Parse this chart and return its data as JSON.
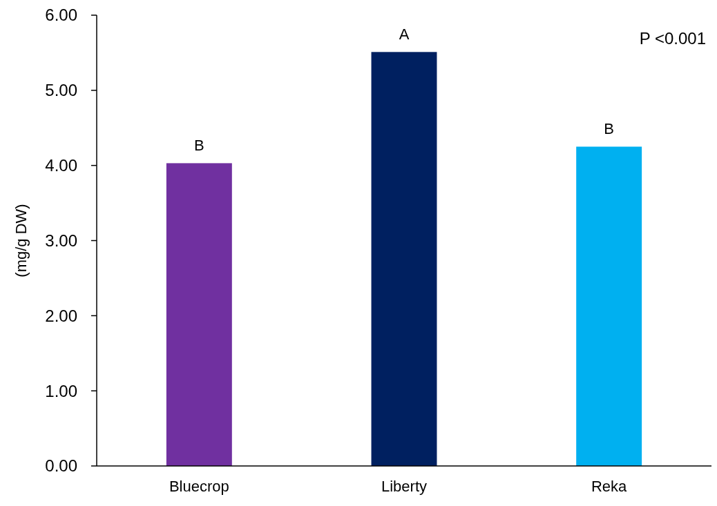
{
  "chart_data": {
    "type": "bar",
    "ylabel": "(mg/g DW)",
    "categories": [
      "Bluecrop",
      "Liberty",
      "Reka"
    ],
    "values": [
      4.03,
      5.51,
      4.25
    ],
    "colors": [
      "#7030a0",
      "#002060",
      "#00b0f0"
    ],
    "ylim": [
      0,
      6
    ],
    "yticks": [
      {
        "value": 0,
        "label": "0.00"
      },
      {
        "value": 1,
        "label": "1.00"
      },
      {
        "value": 2,
        "label": "2.00"
      },
      {
        "value": 3,
        "label": "3.00"
      },
      {
        "value": 4,
        "label": "4.00"
      },
      {
        "value": 5,
        "label": "5.00"
      },
      {
        "value": 6,
        "label": "6.00"
      }
    ],
    "grid": false,
    "annotations": [
      {
        "text": "B",
        "x": "Bluecrop",
        "y": 4.03
      },
      {
        "text": "A",
        "x": "Liberty",
        "y": 5.51
      },
      {
        "text": "B",
        "x": "Reka",
        "y": 4.25
      },
      "P <0.001"
    ]
  }
}
